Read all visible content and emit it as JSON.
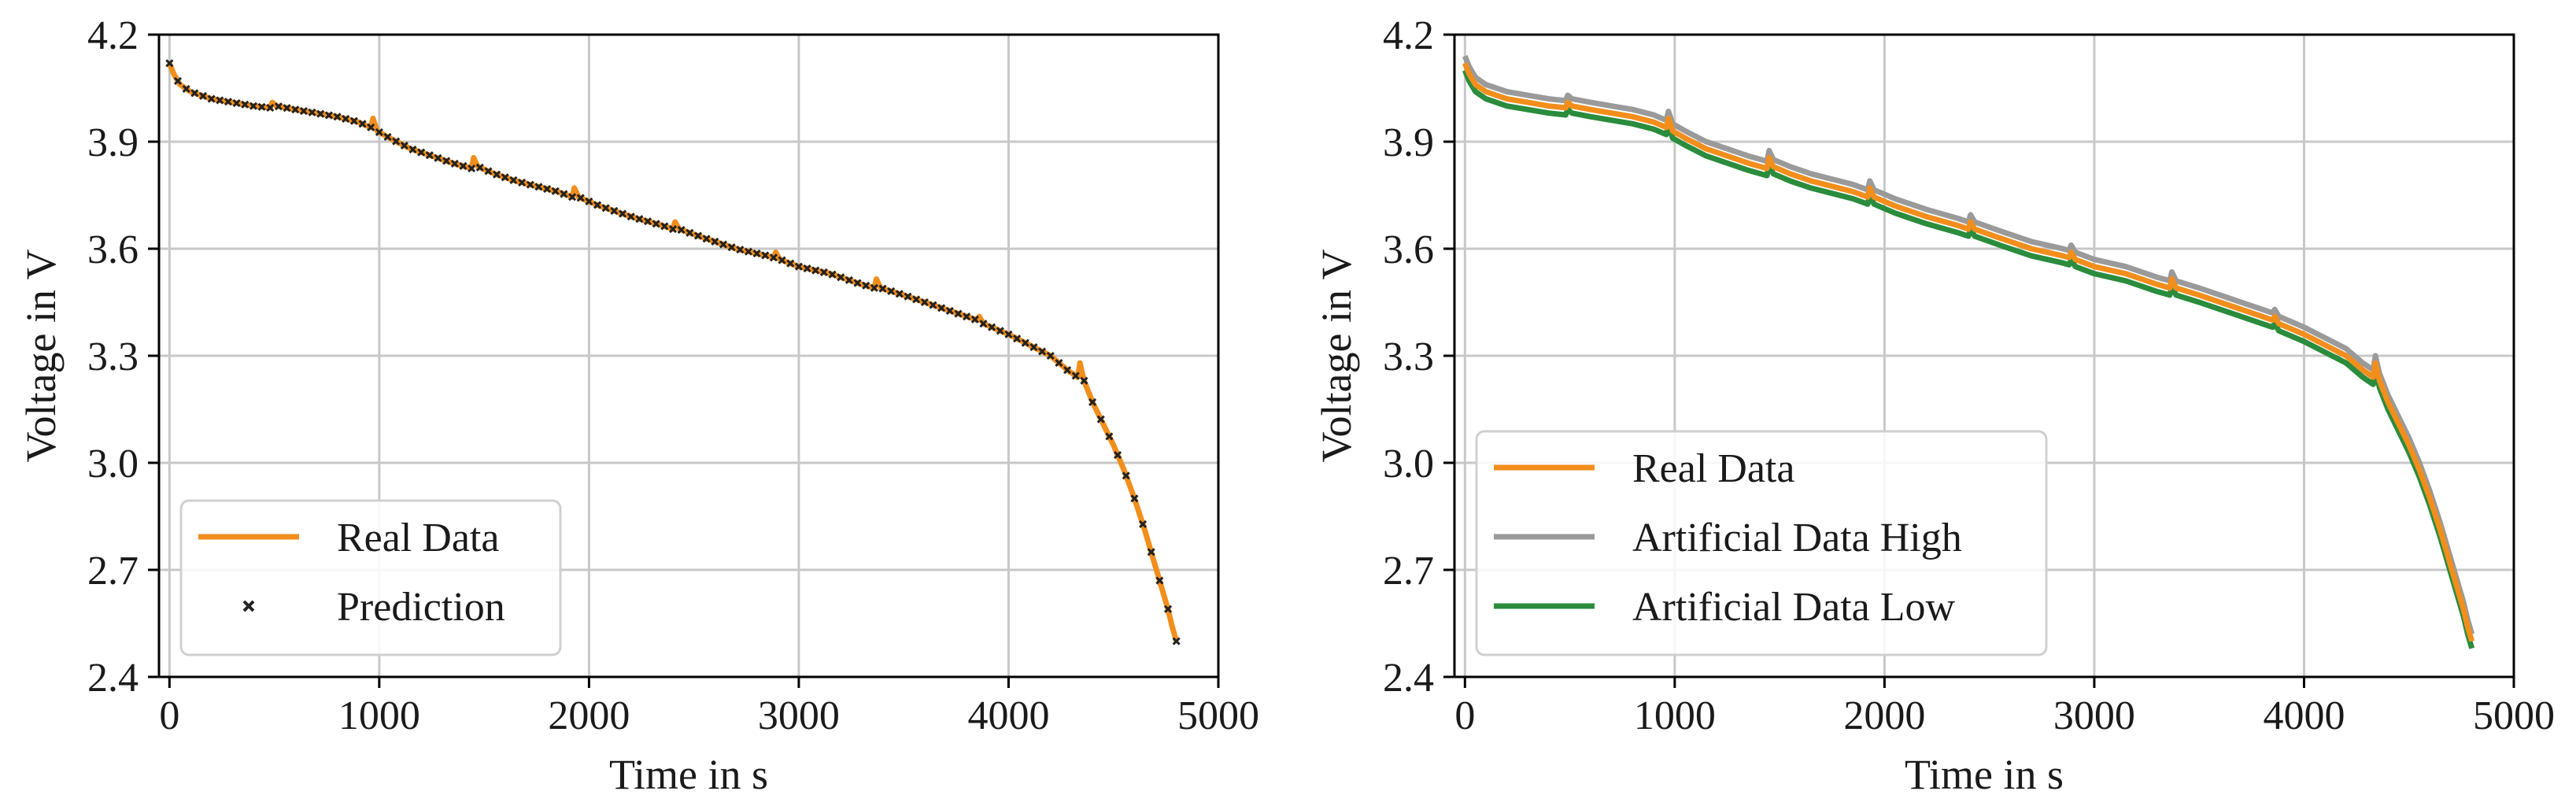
{
  "chart_data": [
    {
      "type": "line",
      "title": "",
      "xlabel": "Time in s",
      "ylabel": "Voltage in V",
      "xlim": [
        -50,
        5000
      ],
      "ylim": [
        2.4,
        4.2
      ],
      "xticks": [
        0,
        1000,
        2000,
        3000,
        4000,
        5000
      ],
      "yticks": [
        2.4,
        2.7,
        3.0,
        3.3,
        3.6,
        3.9,
        4.2
      ],
      "xtick_labels": [
        "0",
        "1000",
        "2000",
        "3000",
        "4000",
        "5000"
      ],
      "ytick_labels": [
        "2.4",
        "2.7",
        "3.0",
        "3.3",
        "3.6",
        "3.9",
        "4.2"
      ],
      "grid": true,
      "legend_position": "lower-left",
      "series": [
        {
          "name": "Real Data",
          "kind": "line",
          "color": "#f28e1c",
          "offset": 0
        },
        {
          "name": "Prediction",
          "kind": "marker",
          "color": "#222222",
          "marker": "x",
          "offset": 0
        }
      ],
      "curve": {
        "x": [
          0,
          20,
          50,
          100,
          200,
          300,
          400,
          480,
          490,
          510,
          600,
          700,
          800,
          900,
          960,
          970,
          990,
          1050,
          1150,
          1250,
          1350,
          1440,
          1450,
          1470,
          1550,
          1650,
          1750,
          1850,
          1920,
          1930,
          1950,
          2050,
          2200,
          2350,
          2400,
          2410,
          2430,
          2550,
          2700,
          2850,
          2880,
          2890,
          2910,
          3000,
          3150,
          3300,
          3360,
          3370,
          3390,
          3500,
          3650,
          3800,
          3850,
          3860,
          3880,
          4000,
          4100,
          4200,
          4280,
          4330,
          4340,
          4360,
          4400,
          4450,
          4500,
          4550,
          4600,
          4650,
          4700,
          4730,
          4760,
          4780,
          4800
        ],
        "y": [
          4.12,
          4.09,
          4.06,
          4.04,
          4.02,
          4.01,
          4.0,
          3.995,
          4.01,
          4.0,
          3.99,
          3.98,
          3.97,
          3.955,
          3.94,
          3.965,
          3.93,
          3.91,
          3.88,
          3.86,
          3.84,
          3.825,
          3.855,
          3.83,
          3.81,
          3.79,
          3.775,
          3.76,
          3.745,
          3.77,
          3.745,
          3.72,
          3.69,
          3.665,
          3.655,
          3.675,
          3.655,
          3.63,
          3.6,
          3.58,
          3.575,
          3.59,
          3.57,
          3.55,
          3.53,
          3.5,
          3.49,
          3.515,
          3.49,
          3.47,
          3.44,
          3.41,
          3.4,
          3.41,
          3.39,
          3.36,
          3.33,
          3.3,
          3.26,
          3.24,
          3.28,
          3.23,
          3.17,
          3.11,
          3.05,
          2.98,
          2.9,
          2.81,
          2.71,
          2.65,
          2.59,
          2.54,
          2.5
        ]
      }
    },
    {
      "type": "line",
      "title": "",
      "xlabel": "Time in s",
      "ylabel": "Voltage in V",
      "xlim": [
        -50,
        5000
      ],
      "ylim": [
        2.4,
        4.2
      ],
      "xticks": [
        0,
        1000,
        2000,
        3000,
        4000,
        5000
      ],
      "yticks": [
        2.4,
        2.7,
        3.0,
        3.3,
        3.6,
        3.9,
        4.2
      ],
      "xtick_labels": [
        "0",
        "1000",
        "2000",
        "3000",
        "4000",
        "5000"
      ],
      "ytick_labels": [
        "2.4",
        "2.7",
        "3.0",
        "3.3",
        "3.6",
        "3.9",
        "4.2"
      ],
      "grid": true,
      "legend_position": "lower-left",
      "series": [
        {
          "name": "Real Data",
          "kind": "line",
          "color": "#f28e1c",
          "offset": 0
        },
        {
          "name": "Artificial Data High",
          "kind": "line",
          "color": "#9a9a9a",
          "offset": 0.02
        },
        {
          "name": "Artificial Data Low",
          "kind": "line",
          "color": "#2a8c3c",
          "offset": -0.02
        }
      ],
      "curve": {
        "x": [
          0,
          20,
          50,
          100,
          200,
          300,
          400,
          480,
          490,
          510,
          600,
          700,
          800,
          900,
          960,
          970,
          990,
          1050,
          1150,
          1250,
          1350,
          1440,
          1450,
          1470,
          1550,
          1650,
          1750,
          1850,
          1920,
          1930,
          1950,
          2050,
          2200,
          2350,
          2400,
          2410,
          2430,
          2550,
          2700,
          2850,
          2880,
          2890,
          2910,
          3000,
          3150,
          3300,
          3360,
          3370,
          3390,
          3500,
          3650,
          3800,
          3850,
          3860,
          3880,
          4000,
          4100,
          4200,
          4280,
          4330,
          4340,
          4360,
          4400,
          4450,
          4500,
          4550,
          4600,
          4650,
          4700,
          4730,
          4760,
          4780,
          4800
        ],
        "y": [
          4.12,
          4.09,
          4.06,
          4.04,
          4.02,
          4.01,
          4.0,
          3.995,
          4.01,
          4.0,
          3.99,
          3.98,
          3.97,
          3.955,
          3.94,
          3.965,
          3.93,
          3.91,
          3.88,
          3.86,
          3.84,
          3.825,
          3.855,
          3.83,
          3.81,
          3.79,
          3.775,
          3.76,
          3.745,
          3.77,
          3.745,
          3.72,
          3.69,
          3.665,
          3.655,
          3.675,
          3.655,
          3.63,
          3.6,
          3.58,
          3.575,
          3.59,
          3.57,
          3.55,
          3.53,
          3.5,
          3.49,
          3.515,
          3.49,
          3.47,
          3.44,
          3.41,
          3.4,
          3.41,
          3.39,
          3.36,
          3.33,
          3.3,
          3.26,
          3.24,
          3.28,
          3.23,
          3.17,
          3.11,
          3.05,
          2.98,
          2.9,
          2.81,
          2.71,
          2.65,
          2.59,
          2.54,
          2.5
        ]
      }
    }
  ],
  "colors": {
    "real_data": "#f28e1c",
    "prediction": "#222222",
    "artificial_high": "#9a9a9a",
    "artificial_low": "#2a8c3c",
    "grid": "#c8c8c8",
    "axes": "#000000"
  }
}
